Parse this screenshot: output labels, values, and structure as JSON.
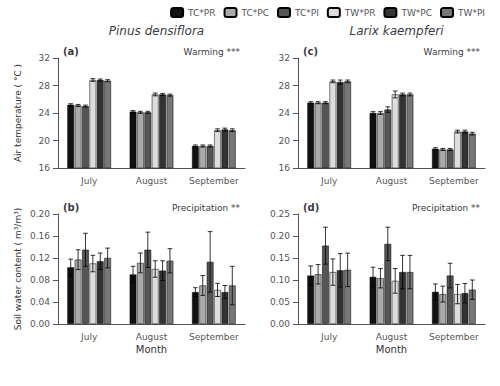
{
  "chart_data": [
    {
      "type": "bar",
      "title": "Pinus densiflora",
      "annotations": [
        "(a)",
        "Warming ***"
      ],
      "y_label": "Air temperature ( °C )",
      "categories": [
        "July",
        "August",
        "September"
      ],
      "series": [
        {
          "name": "TC*PR",
          "color": "#111111",
          "values": [
            25.2,
            24.2,
            19.2
          ],
          "errors": [
            0.15,
            0.15,
            0.15
          ]
        },
        {
          "name": "TC*PC",
          "color": "#aaaaaa",
          "values": [
            25.1,
            24.1,
            19.2
          ],
          "errors": [
            0.15,
            0.15,
            0.15
          ]
        },
        {
          "name": "TC*PI",
          "color": "#555555",
          "values": [
            25.0,
            24.1,
            19.2
          ],
          "errors": [
            0.15,
            0.15,
            0.15
          ]
        },
        {
          "name": "TW*PR",
          "color": "#dddddd",
          "values": [
            28.8,
            26.7,
            21.5
          ],
          "errors": [
            0.2,
            0.2,
            0.2
          ]
        },
        {
          "name": "TW*PC",
          "color": "#333333",
          "values": [
            28.8,
            26.7,
            21.6
          ],
          "errors": [
            0.15,
            0.15,
            0.2
          ]
        },
        {
          "name": "TW*PI",
          "color": "#777777",
          "values": [
            28.7,
            26.6,
            21.5
          ],
          "errors": [
            0.15,
            0.15,
            0.2
          ]
        }
      ],
      "ylim": [
        16,
        32
      ],
      "yticks": [
        16,
        20,
        24,
        28,
        32
      ],
      "grid": false,
      "legend": "upper right"
    },
    {
      "type": "bar",
      "title": "Larix kaempferi",
      "annotations": [
        "(c)",
        "Warming ***"
      ],
      "categories": [
        "July",
        "August",
        "September"
      ],
      "series": [
        {
          "name": "TC*PR",
          "color": "#111111",
          "values": [
            25.5,
            24.0,
            18.8
          ],
          "errors": [
            0.15,
            0.2,
            0.15
          ]
        },
        {
          "name": "TC*PC",
          "color": "#aaaaaa",
          "values": [
            25.5,
            24.0,
            18.7
          ],
          "errors": [
            0.15,
            0.2,
            0.15
          ]
        },
        {
          "name": "TC*PI",
          "color": "#555555",
          "values": [
            25.5,
            24.5,
            18.7
          ],
          "errors": [
            0.15,
            0.4,
            0.15
          ]
        },
        {
          "name": "TW*PR",
          "color": "#dddddd",
          "values": [
            28.6,
            26.7,
            21.3
          ],
          "errors": [
            0.2,
            0.5,
            0.2
          ]
        },
        {
          "name": "TW*PC",
          "color": "#333333",
          "values": [
            28.5,
            26.7,
            21.3
          ],
          "errors": [
            0.3,
            0.2,
            0.2
          ]
        },
        {
          "name": "TW*PI",
          "color": "#777777",
          "values": [
            28.6,
            26.7,
            21.0
          ],
          "errors": [
            0.2,
            0.2,
            0.2
          ]
        }
      ],
      "ylim": [
        16,
        32
      ],
      "yticks": [
        16,
        20,
        24,
        28,
        32
      ],
      "grid": false
    },
    {
      "type": "bar",
      "annotations": [
        "(b)",
        "Precipitation **"
      ],
      "x_label": "Month",
      "y_label": "Soil water content ( m³/m³)",
      "categories": [
        "July",
        "August",
        "September"
      ],
      "series": [
        {
          "name": "TC*PR",
          "color": "#111111",
          "values": [
            0.103,
            0.09,
            0.058
          ],
          "errors": [
            0.015,
            0.015,
            0.008
          ]
        },
        {
          "name": "TC*PC",
          "color": "#aaaaaa",
          "values": [
            0.117,
            0.111,
            0.07
          ],
          "errors": [
            0.018,
            0.018,
            0.018
          ]
        },
        {
          "name": "TC*PI",
          "color": "#555555",
          "values": [
            0.135,
            0.135,
            0.113
          ],
          "errors": [
            0.03,
            0.032,
            0.055
          ]
        },
        {
          "name": "TW*PR",
          "color": "#dddddd",
          "values": [
            0.11,
            0.1,
            0.062
          ],
          "errors": [
            0.015,
            0.015,
            0.012
          ]
        },
        {
          "name": "TW*PC",
          "color": "#333333",
          "values": [
            0.114,
            0.097,
            0.058
          ],
          "errors": [
            0.015,
            0.018,
            0.012
          ]
        },
        {
          "name": "TW*PI",
          "color": "#777777",
          "values": [
            0.12,
            0.115,
            0.07
          ],
          "errors": [
            0.018,
            0.022,
            0.035
          ]
        }
      ],
      "ylim": [
        0,
        0.2
      ],
      "yticks": [
        {
          "value": 0,
          "label": "0.00"
        },
        0.04,
        0.08,
        0.12,
        0.16,
        {
          "value": 0.2,
          "label": "0.20"
        }
      ],
      "grid": false
    },
    {
      "type": "bar",
      "annotations": [
        "(d)",
        "Precipitation **"
      ],
      "x_label": "Month",
      "categories": [
        "July",
        "August",
        "September"
      ],
      "series": [
        {
          "name": "TC*PR",
          "color": "#111111",
          "values": [
            0.11,
            0.107,
            0.073
          ],
          "errors": [
            0.022,
            0.022,
            0.018
          ]
        },
        {
          "name": "TC*PC",
          "color": "#aaaaaa",
          "values": [
            0.113,
            0.104,
            0.068
          ],
          "errors": [
            0.022,
            0.022,
            0.018
          ]
        },
        {
          "name": "TC*PI",
          "color": "#555555",
          "values": [
            0.178,
            0.182,
            0.11
          ],
          "errors": [
            0.042,
            0.038,
            0.028
          ]
        },
        {
          "name": "TW*PR",
          "color": "#dddddd",
          "values": [
            0.118,
            0.098,
            0.068
          ],
          "errors": [
            0.03,
            0.028,
            0.022
          ]
        },
        {
          "name": "TW*PC",
          "color": "#333333",
          "values": [
            0.122,
            0.118,
            0.07
          ],
          "errors": [
            0.038,
            0.038,
            0.022
          ]
        },
        {
          "name": "TW*PI",
          "color": "#777777",
          "values": [
            0.123,
            0.118,
            0.078
          ],
          "errors": [
            0.038,
            0.038,
            0.022
          ]
        }
      ],
      "ylim": [
        0,
        0.25
      ],
      "yticks": [
        {
          "value": 0,
          "label": "0.00"
        },
        0.05,
        {
          "value": 0.1,
          "label": "0.10"
        },
        0.15,
        {
          "value": 0.2,
          "label": "0.20"
        },
        0.25
      ],
      "grid": false
    }
  ]
}
